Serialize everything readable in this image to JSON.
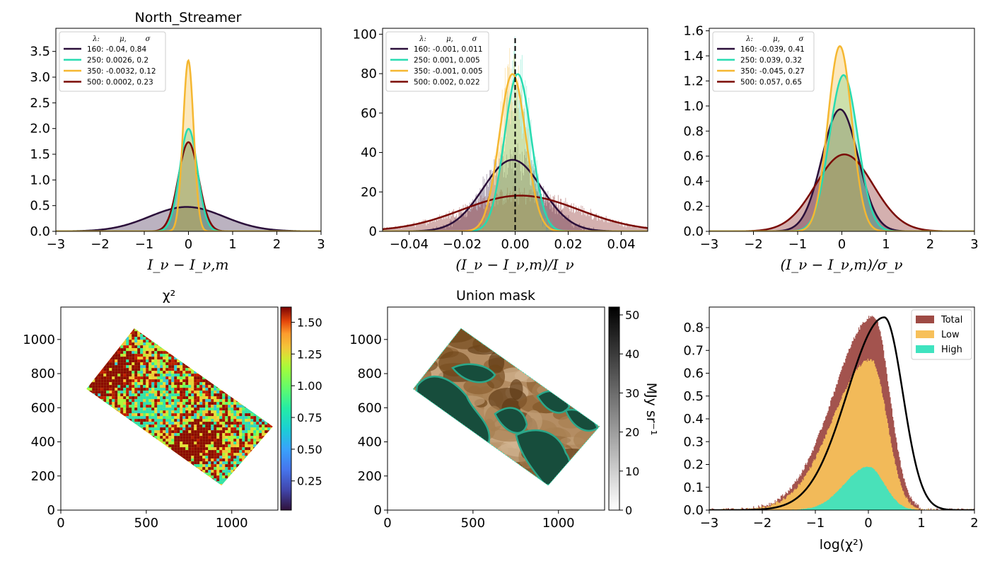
{
  "colors": {
    "s160": "#2b0f3a",
    "s250": "#27dbb0",
    "s350": "#f5b731",
    "s500": "#7a0a05"
  },
  "panels": {
    "p1": {
      "title": "North_Streamer",
      "xlabel": "I_ν − I_ν,m"
    },
    "p2": {
      "xlabel": "(I_ν − I_ν,m)/I_ν"
    },
    "p3": {
      "xlabel": "(I_ν − I_ν,m)/σ_ν"
    },
    "p4": {
      "title": "χ²"
    },
    "p5": {
      "title": "Union mask",
      "cbar_label": "MJy sr⁻¹"
    },
    "p6": {
      "xlabel": "log(χ²)"
    }
  },
  "chart_data": [
    {
      "type": "area",
      "title": "North_Streamer",
      "xlabel": "Iν − Iν,m",
      "xlim": [
        -3,
        3
      ],
      "ylim": [
        0,
        3.95
      ],
      "xticks": [
        "−3",
        "−2",
        "−1",
        "0",
        "1",
        "2",
        "3"
      ],
      "yticks": [
        "0.0",
        "0.5",
        "1.0",
        "1.5",
        "2.0",
        "2.5",
        "3.0",
        "3.5"
      ],
      "xtick_values": [
        -3,
        -2,
        -1,
        0,
        1,
        2,
        3
      ],
      "ytick_values": [
        0,
        0.5,
        1.0,
        1.5,
        2.0,
        2.5,
        3.0,
        3.5
      ],
      "legend_header": [
        "λ:",
        "μ,",
        "σ"
      ],
      "series": [
        {
          "name": "160: -0.04,  0.84",
          "mu": -0.04,
          "sigma": 0.84
        },
        {
          "name": "250: 0.0026,  0.2",
          "mu": 0.0026,
          "sigma": 0.2
        },
        {
          "name": "350: -0.0032,  0.12",
          "mu": -0.0032,
          "sigma": 0.12
        },
        {
          "name": "500: 0.0002,  0.23",
          "mu": 0.0002,
          "sigma": 0.23
        }
      ]
    },
    {
      "type": "area",
      "xlabel": "(Iν − Iν,m)/Iν",
      "xlim": [
        -0.05,
        0.05
      ],
      "ylim": [
        0,
        103
      ],
      "xticks": [
        "−0.04",
        "−0.02",
        "0.00",
        "0.02",
        "0.04"
      ],
      "yticks": [
        "0",
        "20",
        "40",
        "60",
        "80",
        "100"
      ],
      "xtick_values": [
        -0.04,
        -0.02,
        0.0,
        0.02,
        0.04
      ],
      "ytick_values": [
        0,
        20,
        40,
        60,
        80,
        100
      ],
      "vline_x": 0,
      "legend_header": [
        "λ:",
        "μ,",
        "σ"
      ],
      "series": [
        {
          "name": "160: -0.001,  0.011",
          "mu": -0.001,
          "sigma": 0.011
        },
        {
          "name": "250: 0.001,  0.005",
          "mu": 0.001,
          "sigma": 0.005
        },
        {
          "name": "350: -0.001,  0.005",
          "mu": -0.001,
          "sigma": 0.005
        },
        {
          "name": "500: 0.002,  0.022",
          "mu": 0.002,
          "sigma": 0.022
        }
      ]
    },
    {
      "type": "area",
      "xlabel": "(Iν − Iν,m)/σν",
      "xlim": [
        -3,
        3
      ],
      "ylim": [
        0,
        1.62
      ],
      "xticks": [
        "−3",
        "−2",
        "−1",
        "0",
        "1",
        "2",
        "3"
      ],
      "yticks": [
        "0.0",
        "0.2",
        "0.4",
        "0.6",
        "0.8",
        "1.0",
        "1.2",
        "1.4",
        "1.6"
      ],
      "xtick_values": [
        -3,
        -2,
        -1,
        0,
        1,
        2,
        3
      ],
      "ytick_values": [
        0,
        0.2,
        0.4,
        0.6,
        0.8,
        1.0,
        1.2,
        1.4,
        1.6
      ],
      "legend_header": [
        "λ:",
        "μ,",
        "σ"
      ],
      "series": [
        {
          "name": "160: -0.039,  0.41",
          "mu": -0.039,
          "sigma": 0.41
        },
        {
          "name": "250: 0.039,  0.32",
          "mu": 0.039,
          "sigma": 0.32
        },
        {
          "name": "350: -0.045,  0.27",
          "mu": -0.045,
          "sigma": 0.27
        },
        {
          "name": "500: 0.057,  0.65",
          "mu": 0.057,
          "sigma": 0.65
        }
      ]
    },
    {
      "type": "heatmap",
      "title": "χ²",
      "xlim": [
        0,
        1270
      ],
      "ylim": [
        0,
        1190
      ],
      "xticks": [
        "0",
        "500",
        "1000"
      ],
      "xtick_values": [
        0,
        500,
        1000
      ],
      "yticks": [
        "0",
        "200",
        "400",
        "600",
        "800",
        "1000"
      ],
      "ytick_values": [
        0,
        200,
        400,
        600,
        800,
        1000
      ],
      "colorbar": {
        "range": [
          0.02,
          1.62
        ],
        "ticks": [
          "0.25",
          "0.50",
          "0.75",
          "1.00",
          "1.25",
          "1.50"
        ],
        "tick_values": [
          0.25,
          0.5,
          0.75,
          1.0,
          1.25,
          1.5
        ],
        "cmap": "turbo"
      },
      "region_corners": [
        [
          150,
          710
        ],
        [
          430,
          1065
        ],
        [
          1240,
          490
        ],
        [
          940,
          145
        ]
      ]
    },
    {
      "type": "heatmap",
      "title": "Union mask",
      "xlim": [
        0,
        1270
      ],
      "ylim": [
        0,
        1190
      ],
      "xticks": [
        "0",
        "500",
        "1000"
      ],
      "xtick_values": [
        0,
        500,
        1000
      ],
      "yticks": [
        "0",
        "200",
        "400",
        "600",
        "800",
        "1000"
      ],
      "ytick_values": [
        0,
        200,
        400,
        600,
        800,
        1000
      ],
      "colorbar": {
        "range": [
          0,
          52
        ],
        "ticks": [
          "0",
          "10",
          "20",
          "30",
          "40",
          "50"
        ],
        "tick_values": [
          0,
          10,
          20,
          30,
          40,
          50
        ],
        "label": "MJy sr⁻¹",
        "cmap": "gray_r"
      },
      "region_corners": [
        [
          150,
          710
        ],
        [
          430,
          1065
        ],
        [
          1240,
          490
        ],
        [
          940,
          145
        ]
      ]
    },
    {
      "type": "area",
      "xlabel": "log(χ²)",
      "xlim": [
        -3,
        2
      ],
      "ylim": [
        0,
        0.89
      ],
      "xticks": [
        "−3",
        "−2",
        "−1",
        "0",
        "1",
        "2"
      ],
      "xtick_values": [
        -3,
        -2,
        -1,
        0,
        1,
        2
      ],
      "yticks": [
        "0.0",
        "0.1",
        "0.2",
        "0.3",
        "0.4",
        "0.5",
        "0.6",
        "0.7",
        "0.8"
      ],
      "ytick_values": [
        0,
        0.1,
        0.2,
        0.3,
        0.4,
        0.5,
        0.6,
        0.7,
        0.8
      ],
      "series": [
        {
          "name": "Total",
          "color": "#9e4a44",
          "peak_x": 0.1,
          "peak_y": 0.85
        },
        {
          "name": "Low",
          "color": "#f7c05a",
          "peak_x": 0.05,
          "peak_y": 0.66
        },
        {
          "name": "High",
          "color": "#3fe3bf",
          "peak_x": 0.0,
          "peak_y": 0.19
        }
      ],
      "curve": {
        "peak_x": 0.3,
        "peak_y": 0.845
      }
    }
  ]
}
